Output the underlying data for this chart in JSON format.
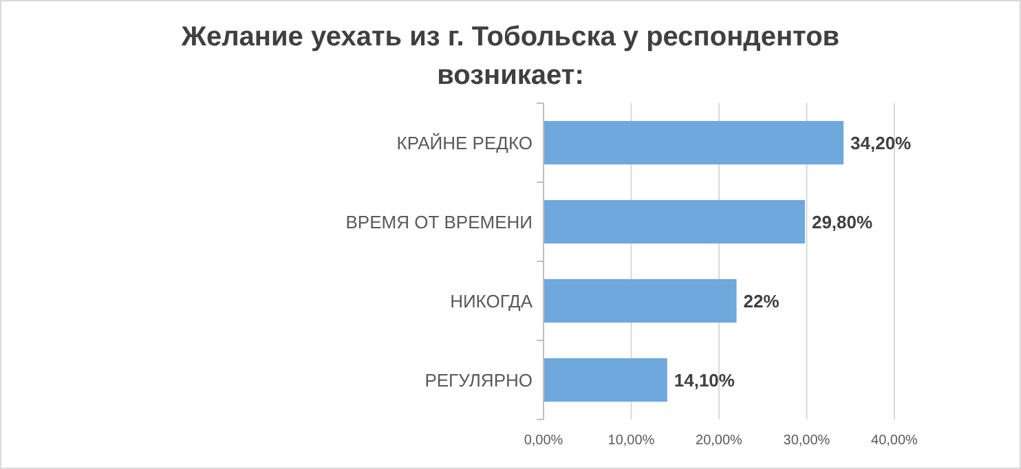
{
  "chart_data": {
    "type": "bar",
    "orientation": "horizontal",
    "title": "Желание уехать из г. Тобольска у респондентов возникает:",
    "categories": [
      "КРАЙНЕ РЕДКО",
      "ВРЕМЯ ОТ ВРЕМЕНИ",
      "НИКОГДА",
      "РЕГУЛЯРНО"
    ],
    "values": [
      34.2,
      29.8,
      22,
      14.1
    ],
    "color": "#6fa8dc",
    "value_labels": [
      "34,20%",
      "29,80%",
      "22%",
      "14,10%"
    ],
    "xlim": [
      0,
      40
    ],
    "xticks": [
      {
        "value": 0,
        "label": "0,00%"
      },
      {
        "value": 10,
        "label": "10,00%"
      },
      {
        "value": 20,
        "label": "20,00%"
      },
      {
        "value": 30,
        "label": "30,00%"
      },
      {
        "value": 40,
        "label": "40,00%"
      }
    ],
    "grid": "x"
  }
}
